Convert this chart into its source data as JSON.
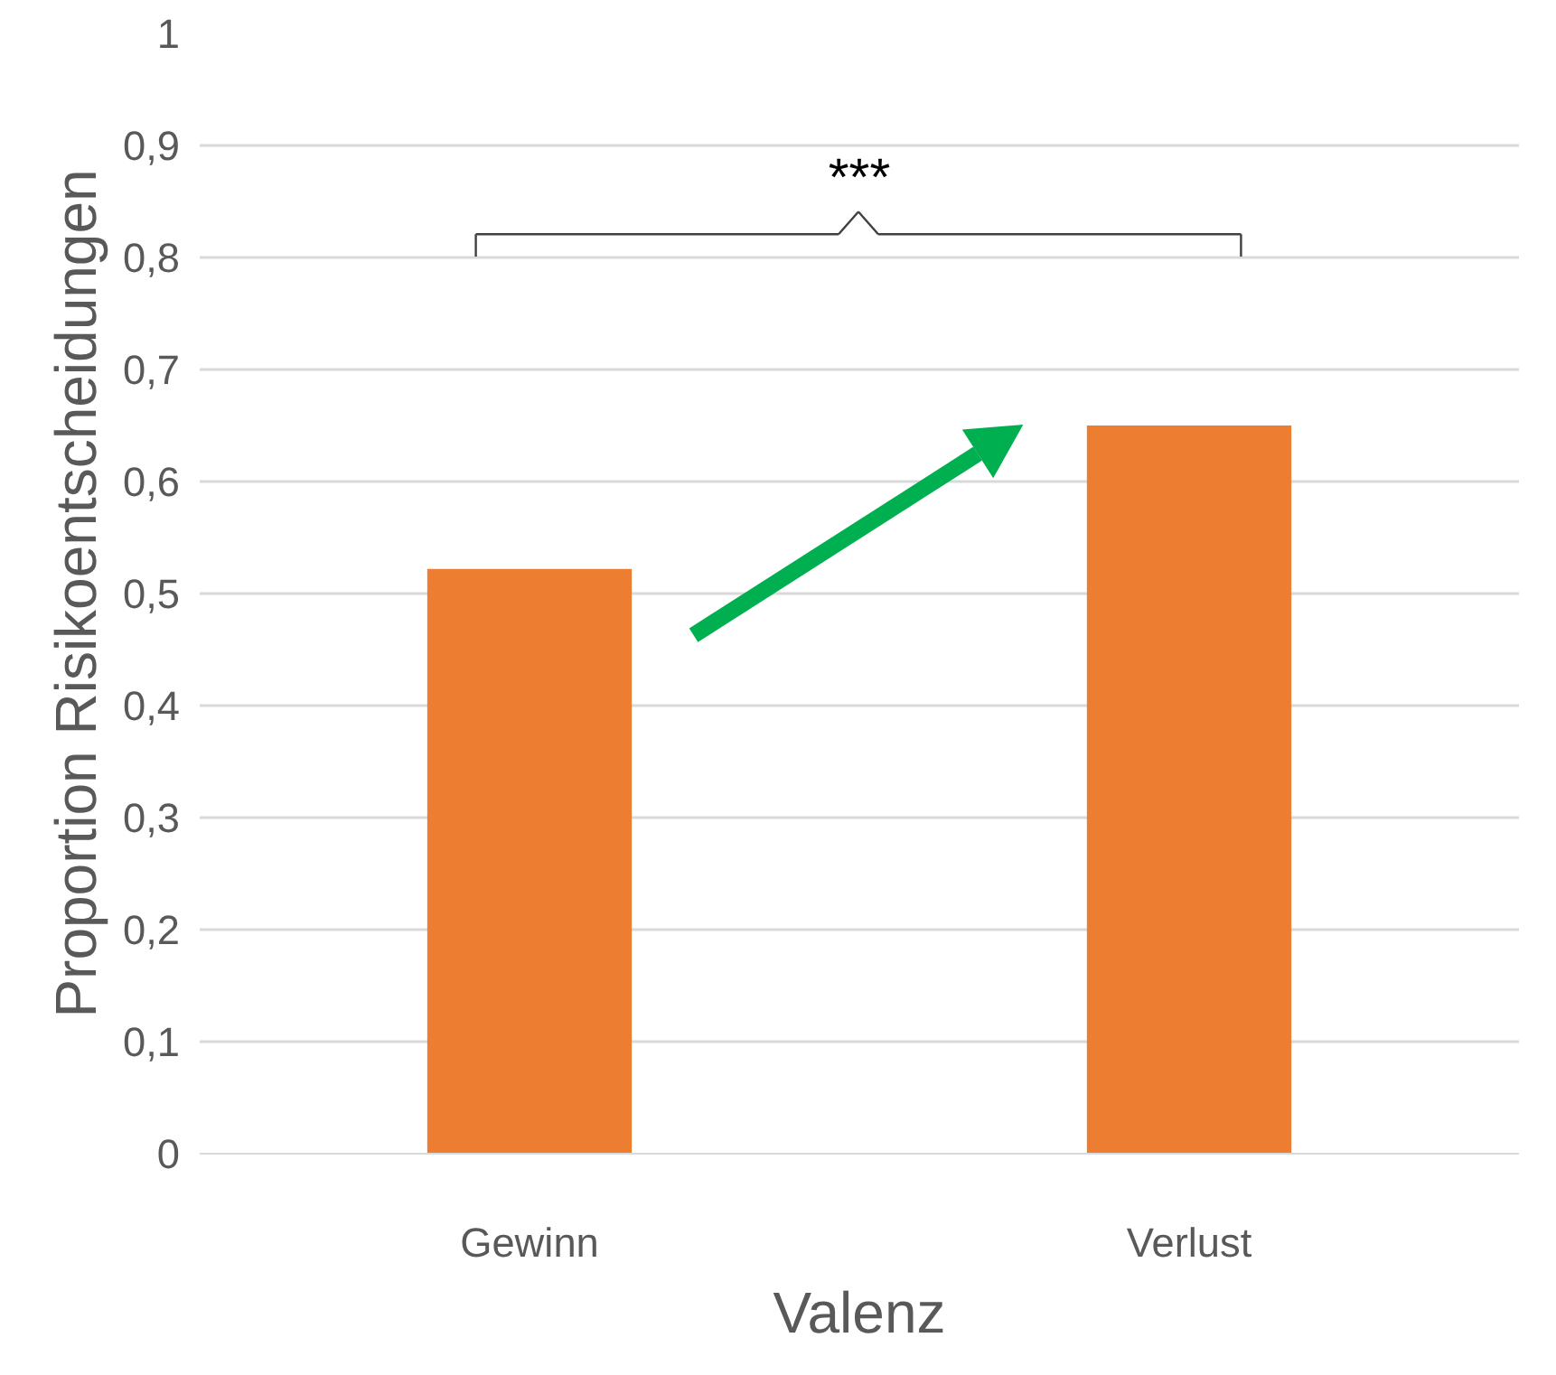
{
  "chart_data": {
    "type": "bar",
    "xlabel": "Valenz",
    "ylabel": "Proportion Risikoentscheidungen",
    "categories": [
      "Gewinn",
      "Verlust"
    ],
    "values": [
      0.522,
      0.65
    ],
    "color": "#ed7d31",
    "ylim": [
      0,
      1
    ],
    "yticks": [
      0,
      {
        "value": 0.1,
        "label": "0,1"
      },
      {
        "value": 0.2,
        "label": "0,2"
      },
      {
        "value": 0.3,
        "label": "0,3"
      },
      {
        "value": 0.4,
        "label": "0,4"
      },
      {
        "value": 0.5,
        "label": "0,5"
      },
      {
        "value": 0.6,
        "label": "0,6"
      },
      {
        "value": 0.7,
        "label": "0,7"
      },
      {
        "value": 0.8,
        "label": "0,8"
      },
      {
        "value": 0.9,
        "label": "0,9"
      },
      1
    ],
    "grid": "y",
    "annotations": [
      "***"
    ]
  }
}
